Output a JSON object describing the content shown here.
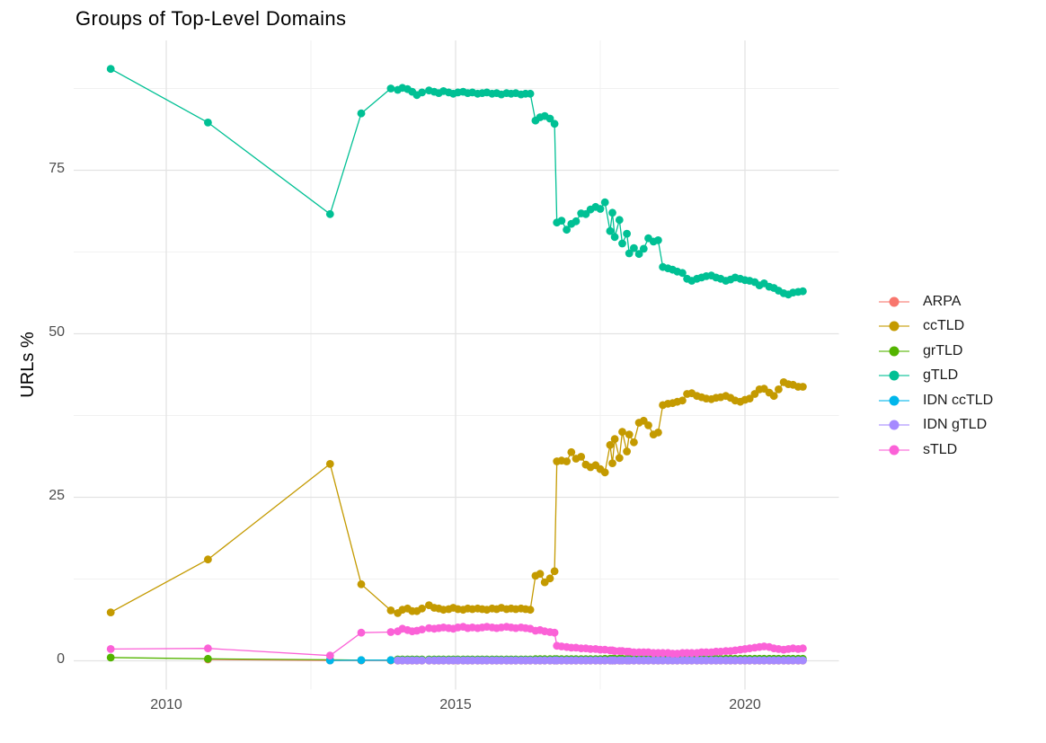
{
  "title": "Groups of Top-Level Domains",
  "chart_data": {
    "type": "line",
    "title": "Groups of Top-Level Domains",
    "xlabel": "",
    "ylabel": "URLs %",
    "grid": true,
    "legend_position": "right",
    "xlim": [
      2008.4,
      2021.6
    ],
    "ylim": [
      -4.5,
      94.8
    ],
    "x_ticks": [
      2010,
      2015,
      2020
    ],
    "x_tick_labels": [
      "2010",
      "2015",
      "2020"
    ],
    "y_ticks": [
      0,
      25,
      50,
      75
    ],
    "y_tick_labels": [
      "0",
      "25",
      "50",
      "75"
    ],
    "x_minor": [
      2012.5,
      2017.5
    ],
    "y_minor": [
      12.5,
      37.5,
      62.5,
      87.5
    ],
    "x": [
      2009.04,
      2010.72,
      2012.83,
      2013.37,
      2013.88,
      2014.0,
      2014.08,
      2014.17,
      2014.25,
      2014.33,
      2014.42,
      2014.54,
      2014.63,
      2014.71,
      2014.79,
      2014.88,
      2014.96,
      2015.04,
      2015.13,
      2015.21,
      2015.29,
      2015.38,
      2015.46,
      2015.54,
      2015.63,
      2015.71,
      2015.79,
      2015.88,
      2015.96,
      2016.04,
      2016.13,
      2016.21,
      2016.29,
      2016.38,
      2016.46,
      2016.54,
      2016.63,
      2016.71,
      2016.75,
      2016.83,
      2016.92,
      2017.0,
      2017.08,
      2017.17,
      2017.25,
      2017.33,
      2017.42,
      2017.5,
      2017.58,
      2017.67,
      2017.71,
      2017.75,
      2017.83,
      2017.88,
      2017.96,
      2018.0,
      2018.08,
      2018.17,
      2018.25,
      2018.33,
      2018.42,
      2018.5,
      2018.58,
      2018.67,
      2018.75,
      2018.83,
      2018.92,
      2019.0,
      2019.08,
      2019.17,
      2019.25,
      2019.33,
      2019.42,
      2019.5,
      2019.58,
      2019.67,
      2019.75,
      2019.83,
      2019.92,
      2020.0,
      2020.08,
      2020.17,
      2020.25,
      2020.33,
      2020.42,
      2020.5,
      2020.58,
      2020.67,
      2020.75,
      2020.83,
      2020.92,
      2021.0
    ],
    "series": [
      {
        "name": "ARPA",
        "color": "#F8766D",
        "values": [
          null,
          0.2,
          0.05,
          0.04,
          0.04,
          0.03,
          0.03,
          0.03,
          0.03,
          0.03,
          0.03,
          0.03,
          0.03,
          0.03,
          0.03,
          0.03,
          0.03,
          0.03,
          0.03,
          0.03,
          0.03,
          0.03,
          0.03,
          0.03,
          0.03,
          0.03,
          0.03,
          0.03,
          0.03,
          0.03,
          0.03,
          0.03,
          0.03,
          0.03,
          0.03,
          0.03,
          0.03,
          0.03,
          0.03,
          0.03,
          0.03,
          0.03,
          0.03,
          0.03,
          0.03,
          0.03,
          0.03,
          0.03,
          0.03,
          0.03,
          0.03,
          0.03,
          0.03,
          0.03,
          0.03,
          0.03,
          0.03,
          0.03,
          0.03,
          0.03,
          0.03,
          0.03,
          0.03,
          0.03,
          0.03,
          0.03,
          0.03,
          0.03,
          0.03,
          0.03,
          0.03,
          0.03,
          0.03,
          0.03,
          0.03,
          0.03,
          0.03,
          0.03,
          0.03,
          0.03,
          0.03,
          0.03,
          0.03,
          0.03,
          0.03,
          0.03,
          0.03,
          0.03,
          0.03,
          0.03,
          0.03,
          0.03
        ]
      },
      {
        "name": "ccTLD",
        "color": "#C49A00",
        "values": [
          7.4,
          15.5,
          30.1,
          11.7,
          7.7,
          7.3,
          7.8,
          8.0,
          7.6,
          7.6,
          8.0,
          8.5,
          8.1,
          8.0,
          7.8,
          7.9,
          8.1,
          7.9,
          7.8,
          8.0,
          7.9,
          8.0,
          7.9,
          7.8,
          8.0,
          7.9,
          8.1,
          7.9,
          8.0,
          7.9,
          8.0,
          7.9,
          7.8,
          13.0,
          13.3,
          12.0,
          12.6,
          13.7,
          30.5,
          30.6,
          30.5,
          31.9,
          30.9,
          31.2,
          30.0,
          29.6,
          29.9,
          29.3,
          28.8,
          33.0,
          30.2,
          33.9,
          31.0,
          35.0,
          32.0,
          34.6,
          33.4,
          36.4,
          36.7,
          36.0,
          34.6,
          34.9,
          39.1,
          39.3,
          39.4,
          39.6,
          39.8,
          40.8,
          40.9,
          40.5,
          40.3,
          40.1,
          40.0,
          40.2,
          40.3,
          40.5,
          40.2,
          39.8,
          39.6,
          39.9,
          40.1,
          40.8,
          41.5,
          41.6,
          41.0,
          40.5,
          41.5,
          42.6,
          42.3,
          42.2,
          41.9,
          41.9
        ]
      },
      {
        "name": "grTLD",
        "color": "#53B400",
        "values": [
          0.5,
          0.3,
          0.15,
          0.1,
          0.1,
          0.2,
          0.2,
          0.2,
          0.2,
          0.2,
          0.2,
          0.2,
          0.2,
          0.2,
          0.2,
          0.2,
          0.2,
          0.2,
          0.2,
          0.2,
          0.2,
          0.2,
          0.2,
          0.2,
          0.2,
          0.2,
          0.2,
          0.2,
          0.2,
          0.2,
          0.2,
          0.2,
          0.2,
          0.25,
          0.25,
          0.25,
          0.25,
          0.25,
          0.25,
          0.25,
          0.25,
          0.25,
          0.25,
          0.25,
          0.25,
          0.25,
          0.25,
          0.25,
          0.3,
          0.3,
          0.3,
          0.3,
          0.3,
          0.3,
          0.3,
          0.3,
          0.3,
          0.3,
          0.3,
          0.3,
          0.3,
          0.3,
          0.3,
          0.3,
          0.3,
          0.3,
          0.3,
          0.3,
          0.3,
          0.3,
          0.3,
          0.3,
          0.3,
          0.3,
          0.3,
          0.3,
          0.3,
          0.3,
          0.3,
          0.3,
          0.3,
          0.3,
          0.3,
          0.3,
          0.3,
          0.3,
          0.3,
          0.3,
          0.3,
          0.3,
          0.3,
          0.3
        ]
      },
      {
        "name": "gTLD",
        "color": "#00C094",
        "values": [
          90.5,
          82.3,
          68.3,
          83.7,
          87.5,
          87.3,
          87.6,
          87.4,
          87.0,
          86.5,
          86.9,
          87.2,
          87.0,
          86.8,
          87.1,
          86.9,
          86.7,
          86.9,
          87.0,
          86.8,
          86.9,
          86.7,
          86.8,
          86.9,
          86.7,
          86.8,
          86.6,
          86.8,
          86.7,
          86.8,
          86.6,
          86.7,
          86.7,
          82.6,
          83.1,
          83.3,
          82.9,
          82.1,
          67.0,
          67.3,
          65.9,
          66.8,
          67.2,
          68.4,
          68.3,
          69.0,
          69.4,
          69.1,
          70.1,
          65.7,
          68.5,
          64.8,
          67.4,
          63.8,
          65.3,
          62.3,
          63.1,
          62.2,
          63.0,
          64.6,
          64.1,
          64.3,
          60.2,
          60.0,
          59.8,
          59.5,
          59.3,
          58.4,
          58.1,
          58.4,
          58.6,
          58.8,
          58.9,
          58.6,
          58.4,
          58.1,
          58.3,
          58.6,
          58.4,
          58.2,
          58.1,
          57.9,
          57.4,
          57.7,
          57.2,
          57.0,
          56.6,
          56.2,
          56.0,
          56.3,
          56.4,
          56.5
        ]
      },
      {
        "name": "IDN ccTLD",
        "color": "#00B6EB",
        "values": [
          null,
          null,
          0.05,
          0.1,
          0.1,
          0.08,
          0.08,
          0.08,
          0.08,
          0.08,
          0.08,
          0.08,
          0.08,
          0.08,
          0.08,
          0.08,
          0.08,
          0.08,
          0.08,
          0.08,
          0.08,
          0.08,
          0.08,
          0.08,
          0.08,
          0.08,
          0.08,
          0.08,
          0.08,
          0.08,
          0.08,
          0.08,
          0.08,
          0.08,
          0.08,
          0.08,
          0.08,
          0.08,
          0.08,
          0.08,
          0.08,
          0.08,
          0.08,
          0.08,
          0.08,
          0.08,
          0.08,
          0.08,
          0.08,
          0.08,
          0.08,
          0.08,
          0.08,
          0.08,
          0.08,
          0.08,
          0.08,
          0.08,
          0.08,
          0.08,
          0.08,
          0.08,
          0.08,
          0.08,
          0.08,
          0.08,
          0.08,
          0.08,
          0.08,
          0.08,
          0.08,
          0.08,
          0.08,
          0.08,
          0.08,
          0.08,
          0.08,
          0.08,
          0.08,
          0.08,
          0.08,
          0.08,
          0.08,
          0.08,
          0.08,
          0.08,
          0.08,
          0.08,
          0.08,
          0.08,
          0.08,
          0.08
        ]
      },
      {
        "name": "IDN gTLD",
        "color": "#A58AFF",
        "values": [
          null,
          null,
          null,
          null,
          null,
          0.05,
          0.05,
          0.05,
          0.05,
          0.05,
          0.05,
          0.05,
          0.05,
          0.05,
          0.05,
          0.05,
          0.05,
          0.05,
          0.05,
          0.05,
          0.05,
          0.05,
          0.05,
          0.05,
          0.05,
          0.05,
          0.05,
          0.05,
          0.05,
          0.05,
          0.05,
          0.05,
          0.05,
          0.05,
          0.05,
          0.05,
          0.05,
          0.05,
          0.05,
          0.05,
          0.05,
          0.05,
          0.05,
          0.05,
          0.05,
          0.05,
          0.05,
          0.05,
          0.05,
          0.05,
          0.05,
          0.05,
          0.05,
          0.05,
          0.05,
          0.05,
          0.05,
          0.05,
          0.05,
          0.05,
          0.05,
          0.05,
          0.05,
          0.05,
          0.05,
          0.05,
          0.05,
          0.05,
          0.05,
          0.05,
          0.05,
          0.05,
          0.05,
          0.05,
          0.05,
          0.05,
          0.05,
          0.05,
          0.05,
          0.05,
          0.05,
          0.05,
          0.05,
          0.05,
          0.05,
          0.05,
          0.05,
          0.05,
          0.05,
          0.05,
          0.05,
          0.05
        ]
      },
      {
        "name": "sTLD",
        "color": "#FB61D7",
        "values": [
          1.8,
          1.9,
          0.8,
          4.3,
          4.4,
          4.5,
          4.9,
          4.7,
          4.5,
          4.6,
          4.8,
          5.0,
          4.9,
          5.0,
          5.1,
          5.0,
          4.9,
          5.1,
          5.2,
          5.0,
          5.1,
          5.0,
          5.1,
          5.2,
          5.1,
          5.0,
          5.1,
          5.2,
          5.1,
          5.0,
          5.1,
          5.0,
          4.9,
          4.6,
          4.7,
          4.5,
          4.4,
          4.3,
          2.3,
          2.2,
          2.1,
          2.0,
          2.0,
          1.9,
          1.9,
          1.8,
          1.8,
          1.7,
          1.7,
          1.6,
          1.6,
          1.5,
          1.5,
          1.5,
          1.4,
          1.4,
          1.3,
          1.3,
          1.3,
          1.3,
          1.2,
          1.2,
          1.2,
          1.2,
          1.1,
          1.1,
          1.2,
          1.2,
          1.2,
          1.2,
          1.3,
          1.3,
          1.3,
          1.4,
          1.4,
          1.5,
          1.5,
          1.6,
          1.7,
          1.8,
          1.9,
          2.0,
          2.1,
          2.2,
          2.1,
          1.9,
          1.8,
          1.7,
          1.8,
          1.9,
          1.8,
          1.9
        ]
      }
    ]
  }
}
